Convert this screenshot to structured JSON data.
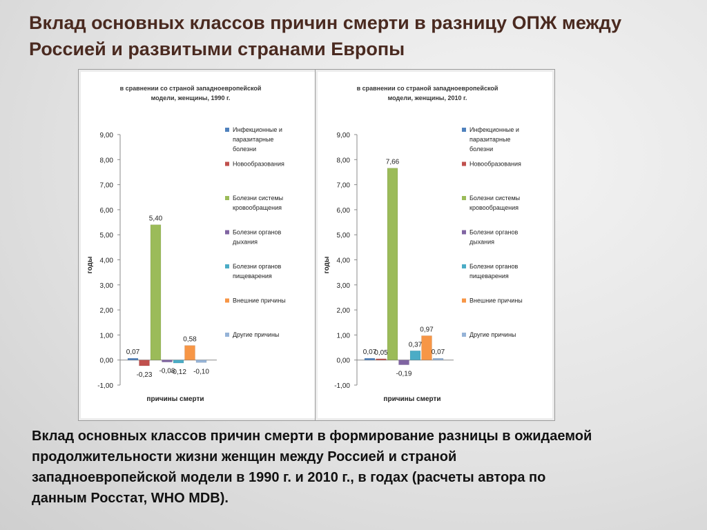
{
  "page": {
    "title_line1": "Вклад основных классов причин смерти в разницу ОПЖ между",
    "title_line2": "Россией и развитыми странами Европы",
    "caption_line1": "Вклад основных классов причин смерти в формирование разницы в ожидаемой",
    "caption_line2": "продолжительности жизни  женщин между Россией и страной",
    "caption_line3": "западноевропейской модели в 1990 г. и 2010 г., в годах (расчеты автора по",
    "caption_line4": "данным Росстат, WHO MDB)."
  },
  "chart_data": [
    {
      "type": "bar",
      "title": [
        "в сравнении со страной западноевропейской",
        "модели, женщины, 1990 г."
      ],
      "xlabel": "причины смерти",
      "ylabel": "годы",
      "ylim": [
        -1,
        9
      ],
      "yticks": [
        "-1,00",
        "0,00",
        "1,00",
        "2,00",
        "3,00",
        "4,00",
        "5,00",
        "6,00",
        "7,00",
        "8,00",
        "9,00"
      ],
      "legend_position": "right",
      "series": [
        {
          "name": [
            "Инфекционные и",
            "паразитарные",
            "болезни"
          ],
          "value": 0.07,
          "label": "0,07",
          "color": "#4f81bd"
        },
        {
          "name": [
            "Новообразования"
          ],
          "value": -0.23,
          "label": "-0,23",
          "color": "#c0504d"
        },
        {
          "name": [
            "Болезни системы",
            "кровообращения"
          ],
          "value": 5.4,
          "label": "5,40",
          "color": "#9bbb59"
        },
        {
          "name": [
            "Болезни органов",
            "дыхания"
          ],
          "value": -0.08,
          "label": "-0,08",
          "color": "#8064a2"
        },
        {
          "name": [
            "Болезни органов",
            "пищеварения"
          ],
          "value": -0.12,
          "label": "-0,12",
          "color": "#4bacc6"
        },
        {
          "name": [
            "Внешние причины"
          ],
          "value": 0.58,
          "label": "0,58",
          "color": "#f79646"
        },
        {
          "name": [
            "Другие причины"
          ],
          "value": -0.1,
          "label": "-0,10",
          "color": "#95b3d7"
        }
      ]
    },
    {
      "type": "bar",
      "title": [
        "в сравнении со страной западноевропейской",
        "модели, женщины, 2010 г."
      ],
      "xlabel": "причины смерти",
      "ylabel": "годы",
      "ylim": [
        -1,
        9
      ],
      "yticks": [
        "-1,00",
        "0,00",
        "1,00",
        "2,00",
        "3,00",
        "4,00",
        "5,00",
        "6,00",
        "7,00",
        "8,00",
        "9,00"
      ],
      "legend_position": "right",
      "series": [
        {
          "name": [
            "Инфекционные и",
            "паразитарные",
            "болезни"
          ],
          "value": 0.07,
          "label": "0,07",
          "color": "#4f81bd"
        },
        {
          "name": [
            "Новообразования"
          ],
          "value": 0.05,
          "label": "0,05",
          "color": "#c0504d"
        },
        {
          "name": [
            "Болезни системы",
            "кровообращения"
          ],
          "value": 7.66,
          "label": "7,66",
          "color": "#9bbb59"
        },
        {
          "name": [
            "Болезни органов",
            "дыхания"
          ],
          "value": -0.19,
          "label": "-0,19",
          "color": "#8064a2"
        },
        {
          "name": [
            "Болезни органов",
            "пищеварения"
          ],
          "value": 0.37,
          "label": "0,37",
          "color": "#4bacc6"
        },
        {
          "name": [
            "Внешние причины"
          ],
          "value": 0.97,
          "label": "0,97",
          "color": "#f79646"
        },
        {
          "name": [
            "Другие причины"
          ],
          "value": 0.07,
          "label": "0,07",
          "color": "#95b3d7"
        }
      ]
    }
  ]
}
